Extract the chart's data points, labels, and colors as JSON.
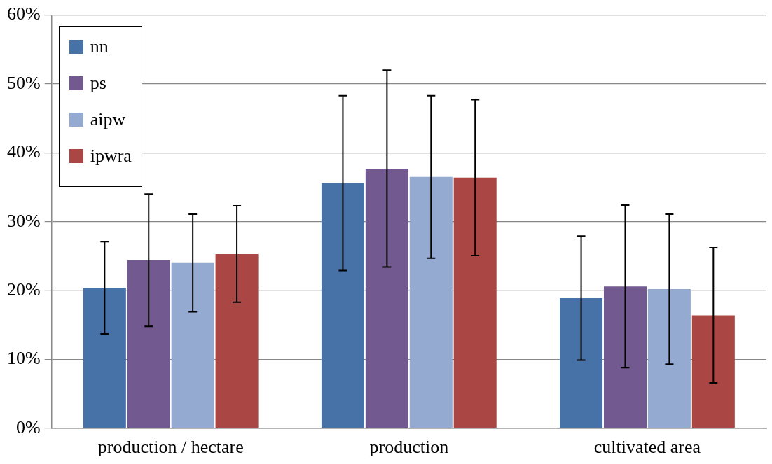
{
  "chart_data": {
    "type": "bar",
    "categories": [
      "production / hectare",
      "production",
      "cultivated area"
    ],
    "series": [
      {
        "name": "nn",
        "color": "#4672a8",
        "values": [
          20.4,
          35.6,
          18.9
        ],
        "errors": [
          6.7,
          12.7,
          9.0
        ]
      },
      {
        "name": "ps",
        "color": "#72598f",
        "values": [
          24.4,
          37.7,
          20.6
        ],
        "errors": [
          9.6,
          14.3,
          11.8
        ]
      },
      {
        "name": "aipw",
        "color": "#94aad1",
        "values": [
          24.0,
          36.5,
          20.2
        ],
        "errors": [
          7.1,
          11.8,
          10.9
        ]
      },
      {
        "name": "ipwra",
        "color": "#aa4644",
        "values": [
          25.3,
          36.4,
          16.4
        ],
        "errors": [
          7.0,
          11.3,
          9.8
        ]
      }
    ],
    "ylim": [
      0,
      60
    ],
    "yticks": [
      {
        "value": 0,
        "label": "0%"
      },
      {
        "value": 10,
        "label": "10%"
      },
      {
        "value": 20,
        "label": "20%"
      },
      {
        "value": 30,
        "label": "30%"
      },
      {
        "value": 40,
        "label": "40%"
      },
      {
        "value": 50,
        "label": "50%"
      },
      {
        "value": 60,
        "label": "60%"
      }
    ],
    "grid": "y",
    "legend": "top left"
  }
}
